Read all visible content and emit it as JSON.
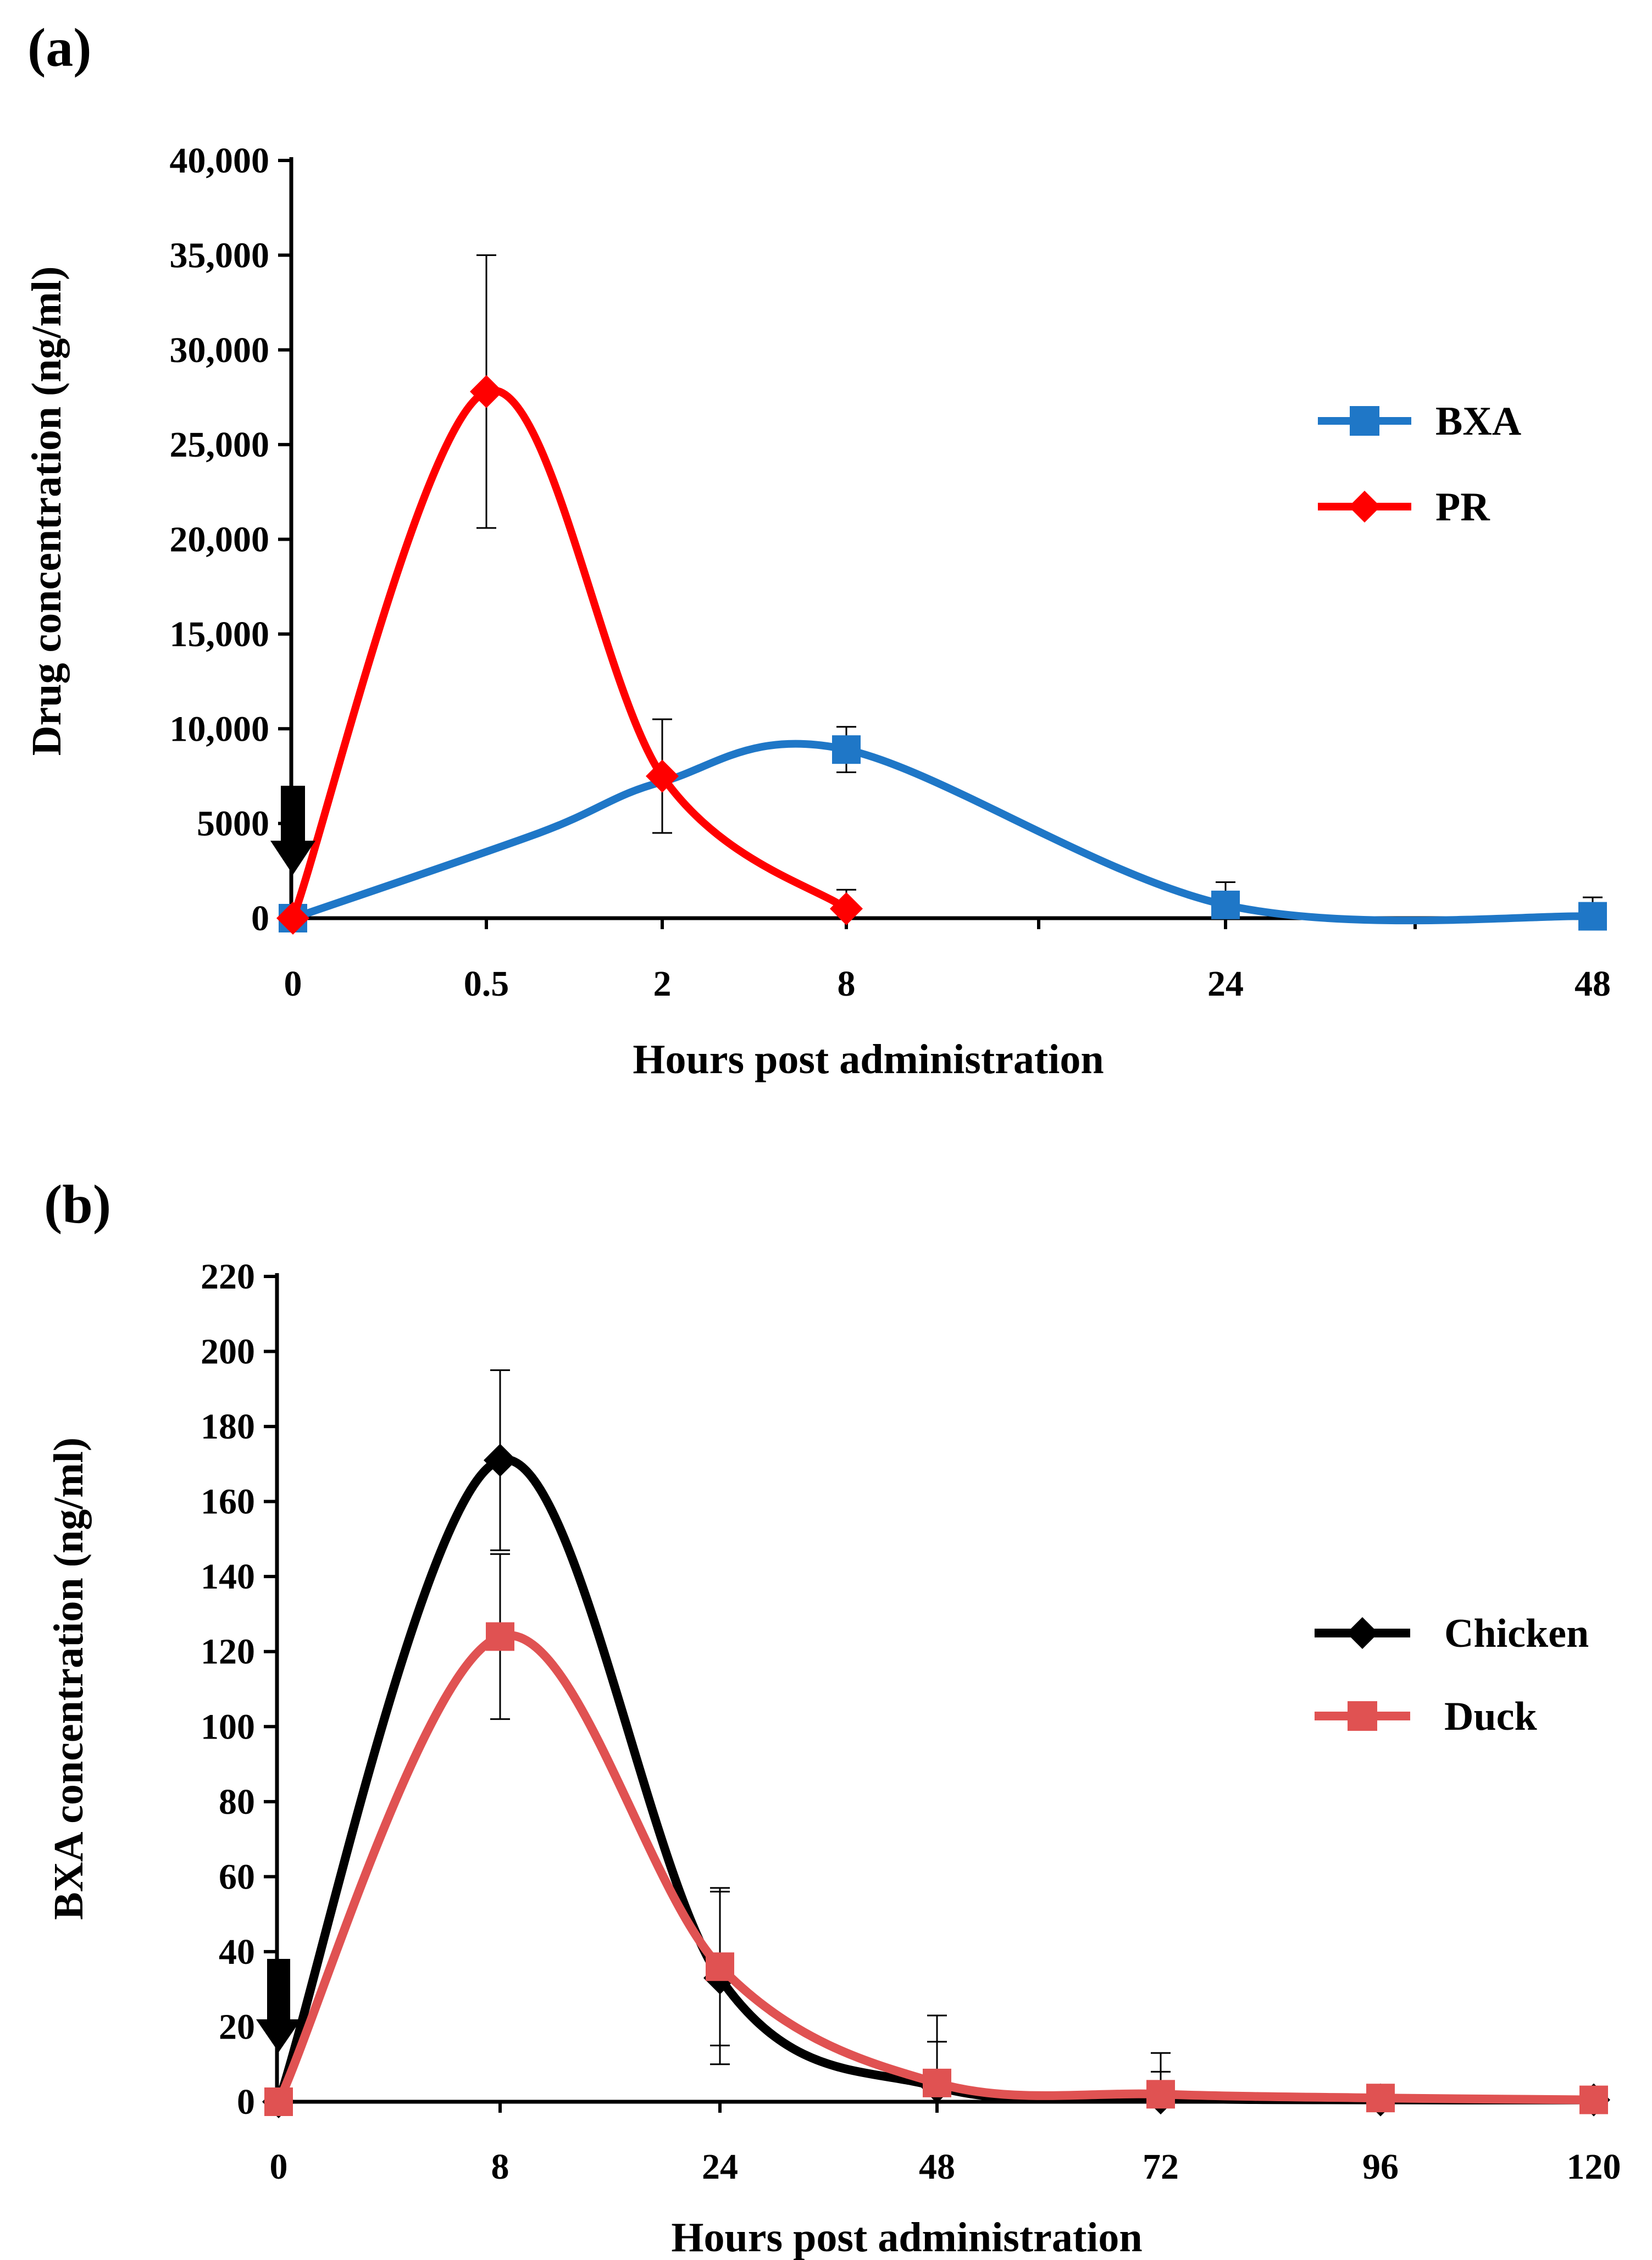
{
  "chart_data": [
    {
      "panel_label": "(a)",
      "type": "line",
      "title": "",
      "xlabel": "Hours post administration",
      "ylabel": "Drug concentration (ng/ml)",
      "categories": [
        "0",
        "0.5",
        "2",
        "8",
        "24",
        "48"
      ],
      "extra_x_ticks": 2,
      "ylim": [
        0,
        40000
      ],
      "yticks": [
        0,
        5000,
        10000,
        15000,
        20000,
        25000,
        30000,
        35000,
        40000
      ],
      "ytick_labels": [
        "0",
        "5000",
        "10,000",
        "15,000",
        "20,000",
        "25,000",
        "30,000",
        "35,000",
        "40,000"
      ],
      "grid": false,
      "legend_position": "right",
      "dosing_arrow_at": "0",
      "series": [
        {
          "name": "BXA",
          "color": "#1F77C7",
          "marker": "square",
          "values": [
            0,
            null,
            null,
            8900,
            700,
            100
          ],
          "errors": [
            0,
            null,
            null,
            1200,
            1200,
            1000
          ],
          "curve_points": [
            {
              "i": 0,
              "v": 0
            },
            {
              "i": 1.3,
              "v": 4500
            },
            {
              "i": 2,
              "v": 7200
            },
            {
              "i": 3,
              "v": 8900
            },
            {
              "i": 4,
              "v": 700
            },
            {
              "i": 5,
              "v": 100
            }
          ]
        },
        {
          "name": "PR",
          "color": "#FF0000",
          "marker": "diamond",
          "values": [
            0,
            27800,
            7500,
            500,
            null,
            null
          ],
          "errors": [
            0,
            7200,
            3000,
            1000,
            null,
            null
          ]
        }
      ]
    },
    {
      "panel_label": "(b)",
      "type": "line",
      "title": "",
      "xlabel": "Hours post administration",
      "ylabel": "BXA concentration (ng/ml)",
      "categories": [
        "0",
        "8",
        "24",
        "48",
        "72",
        "96",
        "120"
      ],
      "ylim": [
        0,
        220
      ],
      "yticks": [
        0,
        20,
        40,
        60,
        80,
        100,
        120,
        140,
        160,
        180,
        200,
        220
      ],
      "ytick_labels": [
        "0",
        "20",
        "40",
        "60",
        "80",
        "100",
        "120",
        "140",
        "160",
        "180",
        "200",
        "220"
      ],
      "grid": false,
      "legend_position": "right",
      "dosing_arrow_at": "0",
      "series": [
        {
          "name": "Chicken",
          "color": "#000000",
          "marker": "diamond",
          "values": [
            0,
            171,
            33,
            4,
            1,
            0.5,
            0.5
          ],
          "errors": [
            0,
            24,
            23,
            12,
            7,
            0,
            0
          ]
        },
        {
          "name": "Duck",
          "color": "#E05252",
          "marker": "square",
          "values": [
            0,
            124,
            36,
            5,
            2,
            1,
            0.5
          ],
          "errors": [
            0,
            22,
            21,
            18,
            11,
            0,
            0
          ]
        }
      ]
    }
  ]
}
